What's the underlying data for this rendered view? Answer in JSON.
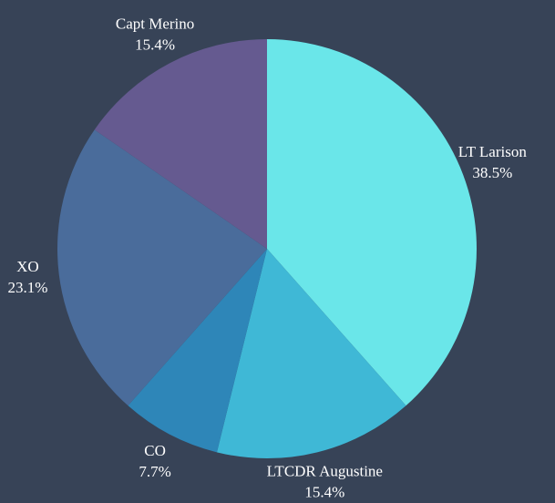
{
  "chart_data": {
    "type": "pie",
    "categories": [
      "LT Larison",
      "LTCDR Augustine",
      "CO",
      "XO",
      "Capt Merino"
    ],
    "values": [
      38.5,
      15.4,
      7.7,
      23.1,
      15.4
    ],
    "value_labels": [
      "38.5%",
      "15.4%",
      "7.7%",
      "23.1%",
      "15.4%"
    ],
    "colors": [
      "#6ae6e9",
      "#3fb8d6",
      "#2e86b8",
      "#4a6c9b",
      "#655a90"
    ]
  }
}
